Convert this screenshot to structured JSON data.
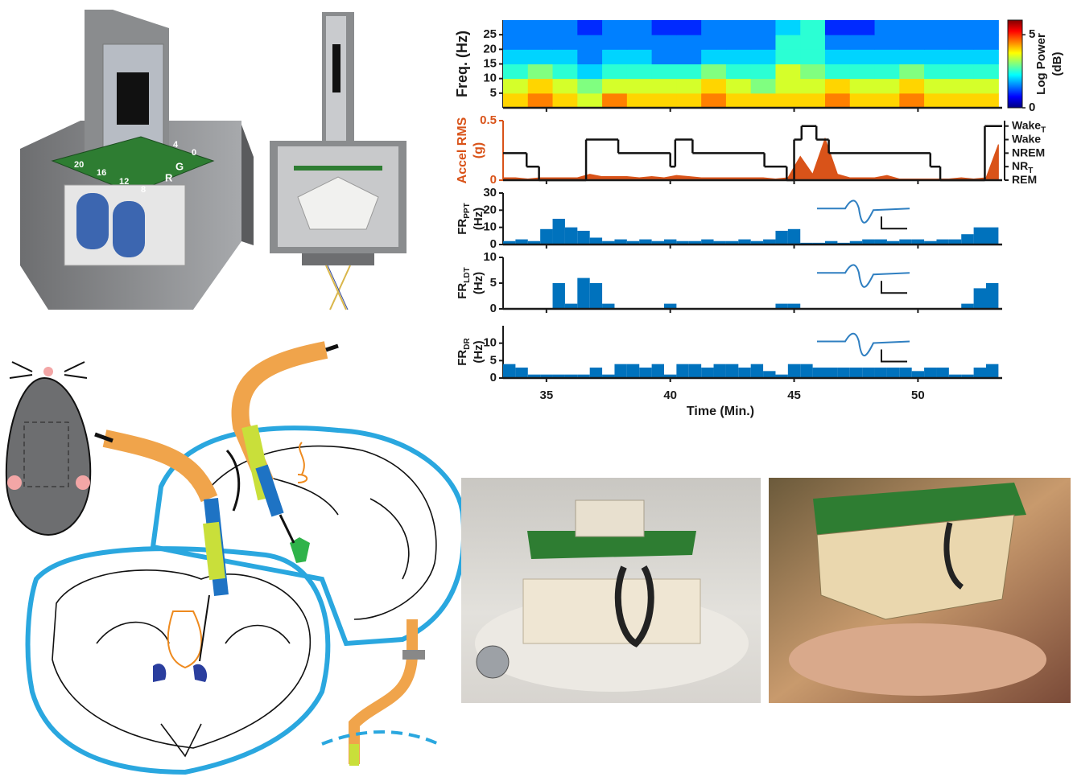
{
  "cad": {
    "pcb_labels": [
      "20",
      "16",
      "12",
      "8",
      "4",
      "0",
      "G",
      "R"
    ]
  },
  "chart_data": [
    {
      "type": "heatmap",
      "ylabel": "Freq. (Hz)",
      "colorbar_label": [
        "Log Power",
        "(dB)"
      ],
      "time_bins": [
        33.25,
        34.25,
        35.25,
        36.25,
        37.25,
        38.25,
        39.25,
        40.25,
        41.25,
        42.25,
        43.25,
        44.25,
        45.25,
        46.25,
        47.25,
        48.25,
        49.25,
        50.25,
        51.25,
        52.25,
        53.25
      ],
      "freq_bins": [
        0,
        5,
        10,
        15,
        20,
        25,
        30
      ],
      "values": [
        [
          4,
          4.5,
          4,
          3.5,
          4.5,
          4,
          4,
          4,
          4.5,
          4,
          4,
          4,
          4,
          4.5,
          4,
          4,
          4.5,
          4,
          4,
          4
        ],
        [
          3.5,
          4,
          3.5,
          3,
          3.5,
          3.5,
          3.5,
          3.5,
          4,
          3.5,
          3,
          3.5,
          3.5,
          4,
          3.5,
          3.5,
          4,
          3.5,
          3.5,
          3.5
        ],
        [
          2.5,
          3,
          2.5,
          2,
          2.5,
          2.5,
          2.5,
          2.5,
          3,
          2.5,
          2.5,
          3.5,
          3,
          2.5,
          2.5,
          2.5,
          3,
          2.5,
          2.5,
          2.5
        ],
        [
          2,
          2,
          2,
          1.5,
          2,
          2,
          1.5,
          1.5,
          2,
          2,
          2,
          2.5,
          2.5,
          2,
          2,
          2,
          2,
          2,
          2,
          2
        ],
        [
          1.5,
          1.5,
          1.5,
          1.5,
          1.5,
          1.5,
          1.5,
          1.5,
          1.5,
          1.5,
          1.5,
          2.5,
          2.5,
          1.5,
          1.5,
          1.5,
          1.5,
          1.5,
          1.5,
          1.5
        ],
        [
          1.5,
          1.5,
          1.5,
          1,
          1.5,
          1.5,
          1,
          1,
          1.5,
          1.5,
          1.5,
          2,
          2.5,
          1,
          1,
          1.5,
          1.5,
          1.5,
          1.5,
          1.5
        ]
      ],
      "xlim": [
        33.25,
        53.4
      ],
      "ylim": [
        0,
        30
      ],
      "yticks": [
        5,
        10,
        15,
        20,
        25
      ],
      "clim": [
        0,
        6
      ],
      "cticks": [
        0,
        5
      ]
    },
    {
      "type": "area",
      "ylabel": [
        "Accel RMS",
        "(g)"
      ],
      "color": "#d95319",
      "x": [
        33.25,
        33.75,
        34.25,
        34.75,
        35.25,
        35.75,
        36.25,
        36.75,
        37.25,
        37.75,
        38.25,
        38.75,
        39.25,
        39.75,
        40.25,
        40.75,
        41.25,
        41.75,
        42.25,
        42.75,
        43.25,
        43.75,
        44.25,
        44.75,
        45.25,
        45.75,
        46.25,
        46.75,
        47.25,
        47.75,
        48.25,
        48.75,
        49.25,
        49.75,
        50.25,
        50.75,
        51.25,
        51.75,
        52.25,
        52.75,
        53.25
      ],
      "values": [
        0.02,
        0.02,
        0.01,
        0.02,
        0.02,
        0.02,
        0.02,
        0.05,
        0.03,
        0.03,
        0.03,
        0.02,
        0.03,
        0.02,
        0.04,
        0.03,
        0.02,
        0.02,
        0.02,
        0.02,
        0.02,
        0.02,
        0.01,
        0.02,
        0.2,
        0.05,
        0.35,
        0.05,
        0.02,
        0.02,
        0.02,
        0.04,
        0.01,
        0.01,
        0.01,
        0.01,
        0.01,
        0.02,
        0.01,
        0.02,
        0.3
      ],
      "hypnogram": {
        "x": [
          33.25,
          34.2,
          34.7,
          36.6,
          37.9,
          40.0,
          40.2,
          40.9,
          43.8,
          44.7,
          45.0,
          45.3,
          45.9,
          46.4,
          50.5,
          50.9,
          52.7
        ],
        "values": [
          2,
          1,
          0,
          3,
          2,
          1,
          3,
          2,
          1,
          0,
          3,
          4,
          3,
          2,
          1,
          0,
          4
        ]
      },
      "xlim": [
        33.25,
        53.4
      ],
      "ylim": [
        0,
        0.5
      ],
      "yticks": [
        0,
        0.5
      ],
      "y2lim": [
        0,
        4.4
      ],
      "y2ticks": [
        {
          "value": 4,
          "label": "Wake",
          "sub": "T"
        },
        {
          "value": 3,
          "label": "Wake"
        },
        {
          "value": 2,
          "label": "NREM"
        },
        {
          "value": 1,
          "label": "NR",
          "sub": "T"
        },
        {
          "value": 0,
          "label": "REM"
        }
      ]
    },
    {
      "type": "histogram",
      "ylabel": {
        "text": "FR",
        "sub": "PPT",
        "unit": "(Hz)"
      },
      "color": "#0072bd",
      "bins": [
        33.25,
        33.75,
        34.25,
        34.75,
        35.25,
        35.75,
        36.25,
        36.75,
        37.25,
        37.75,
        38.25,
        38.75,
        39.25,
        39.75,
        40.25,
        40.75,
        41.25,
        41.75,
        42.25,
        42.75,
        43.25,
        43.75,
        44.25,
        44.75,
        45.25,
        45.75,
        46.25,
        46.75,
        47.25,
        47.75,
        48.25,
        48.75,
        49.25,
        49.75,
        50.25,
        50.75,
        51.25,
        51.75,
        52.25,
        52.75,
        53.25
      ],
      "values": [
        2,
        3,
        2,
        9,
        15,
        10,
        8,
        4,
        2,
        3,
        2,
        3,
        2,
        3,
        2,
        2,
        3,
        2,
        2,
        3,
        2,
        3,
        8,
        9,
        1,
        1,
        2,
        1,
        2,
        3,
        3,
        2,
        3,
        3,
        2,
        3,
        3,
        6,
        10,
        10
      ],
      "xlim": [
        33.25,
        53.4
      ],
      "ylim": [
        0,
        30
      ],
      "yticks": [
        0,
        10,
        20,
        30
      ]
    },
    {
      "type": "histogram",
      "ylabel": {
        "text": "FR",
        "sub": "LDT",
        "unit": "(Hz)"
      },
      "color": "#0072bd",
      "bins": [
        33.25,
        33.75,
        34.25,
        34.75,
        35.25,
        35.75,
        36.25,
        36.75,
        37.25,
        37.75,
        38.25,
        38.75,
        39.25,
        39.75,
        40.25,
        40.75,
        41.25,
        41.75,
        42.25,
        42.75,
        43.25,
        43.75,
        44.25,
        44.75,
        45.25,
        45.75,
        46.25,
        46.75,
        47.25,
        47.75,
        48.25,
        48.75,
        49.25,
        49.75,
        50.25,
        50.75,
        51.25,
        51.75,
        52.25,
        52.75,
        53.25
      ],
      "values": [
        0,
        0,
        0,
        0,
        5,
        1,
        6,
        5,
        1,
        0,
        0,
        0,
        0,
        1,
        0,
        0,
        0,
        0,
        0,
        0,
        0,
        0,
        1,
        1,
        0,
        0,
        0,
        0,
        0,
        0,
        0,
        0,
        0,
        0,
        0,
        0,
        0,
        1,
        4,
        5
      ],
      "xlim": [
        33.25,
        53.4
      ],
      "ylim": [
        0,
        10
      ],
      "yticks": [
        0,
        5,
        10
      ]
    },
    {
      "type": "histogram",
      "ylabel": {
        "text": "FR",
        "sub": "DR",
        "unit": "(Hz)"
      },
      "color": "#0072bd",
      "bins": [
        33.25,
        33.75,
        34.25,
        34.75,
        35.25,
        35.75,
        36.25,
        36.75,
        37.25,
        37.75,
        38.25,
        38.75,
        39.25,
        39.75,
        40.25,
        40.75,
        41.25,
        41.75,
        42.25,
        42.75,
        43.25,
        43.75,
        44.25,
        44.75,
        45.25,
        45.75,
        46.25,
        46.75,
        47.25,
        47.75,
        48.25,
        48.75,
        49.25,
        49.75,
        50.25,
        50.75,
        51.25,
        51.75,
        52.25,
        52.75,
        53.25
      ],
      "values": [
        4,
        3,
        1,
        1,
        1,
        1,
        1,
        3,
        1,
        4,
        4,
        3,
        4,
        1,
        4,
        4,
        3,
        4,
        4,
        3,
        4,
        2,
        1,
        4,
        4,
        3,
        3,
        3,
        3,
        3,
        3,
        3,
        3,
        2,
        3,
        3,
        1,
        1,
        3,
        4
      ],
      "xlim": [
        33.25,
        53.4
      ],
      "ylim": [
        0,
        15
      ],
      "yticks": [
        0,
        5,
        10
      ],
      "xticks": [
        35,
        40,
        45,
        50
      ],
      "xlabel": "Time (Min.)"
    }
  ]
}
